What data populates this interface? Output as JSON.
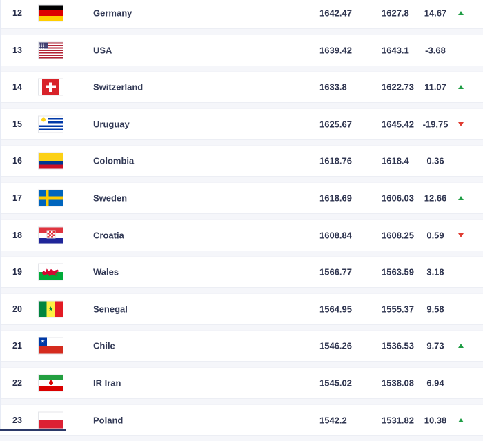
{
  "table": {
    "rows": [
      {
        "rank": "12",
        "country": "Germany",
        "flag": "germany",
        "points": "1642.47",
        "prev": "1627.8",
        "change": "14.67",
        "trend": "up"
      },
      {
        "rank": "13",
        "country": "USA",
        "flag": "usa",
        "points": "1639.42",
        "prev": "1643.1",
        "change": "-3.68",
        "trend": "none"
      },
      {
        "rank": "14",
        "country": "Switzerland",
        "flag": "switzerland",
        "points": "1633.8",
        "prev": "1622.73",
        "change": "11.07",
        "trend": "up"
      },
      {
        "rank": "15",
        "country": "Uruguay",
        "flag": "uruguay",
        "points": "1625.67",
        "prev": "1645.42",
        "change": "-19.75",
        "trend": "down"
      },
      {
        "rank": "16",
        "country": "Colombia",
        "flag": "colombia",
        "points": "1618.76",
        "prev": "1618.4",
        "change": "0.36",
        "trend": "none"
      },
      {
        "rank": "17",
        "country": "Sweden",
        "flag": "sweden",
        "points": "1618.69",
        "prev": "1606.03",
        "change": "12.66",
        "trend": "up"
      },
      {
        "rank": "18",
        "country": "Croatia",
        "flag": "croatia",
        "points": "1608.84",
        "prev": "1608.25",
        "change": "0.59",
        "trend": "down"
      },
      {
        "rank": "19",
        "country": "Wales",
        "flag": "wales",
        "points": "1566.77",
        "prev": "1563.59",
        "change": "3.18",
        "trend": "none"
      },
      {
        "rank": "20",
        "country": "Senegal",
        "flag": "senegal",
        "points": "1564.95",
        "prev": "1555.37",
        "change": "9.58",
        "trend": "none"
      },
      {
        "rank": "21",
        "country": "Chile",
        "flag": "chile",
        "points": "1546.26",
        "prev": "1536.53",
        "change": "9.73",
        "trend": "up"
      },
      {
        "rank": "22",
        "country": "IR Iran",
        "flag": "iran",
        "points": "1545.02",
        "prev": "1538.08",
        "change": "6.94",
        "trend": "none"
      },
      {
        "rank": "23",
        "country": "Poland",
        "flag": "poland",
        "points": "1542.2",
        "prev": "1531.82",
        "change": "10.38",
        "trend": "up"
      }
    ]
  },
  "colors": {
    "trend_up": "#1f9d44",
    "trend_down": "#e03c31",
    "text": "#2f3550",
    "row_bg": "#ffffff",
    "page_bg": "#f5f6fa",
    "accent_bar": "#2c3968"
  }
}
